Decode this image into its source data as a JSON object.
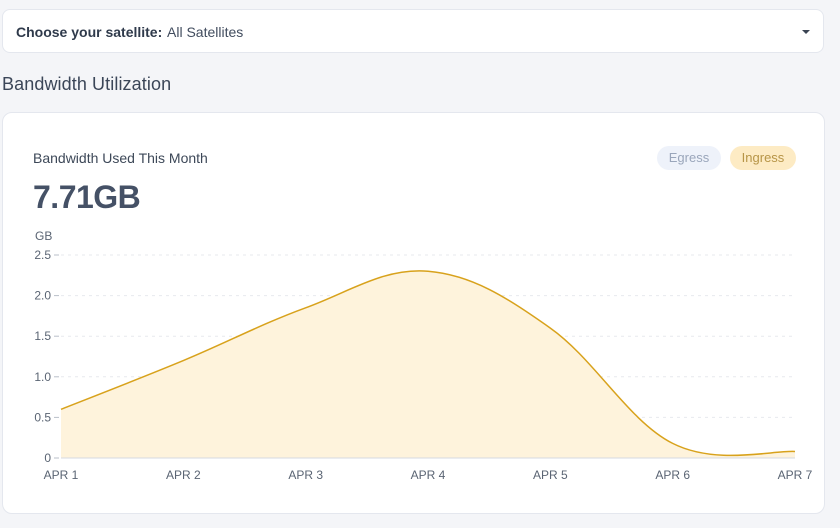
{
  "selector": {
    "label": "Choose your satellite:",
    "value": "All Satellites"
  },
  "section_title": "Bandwidth Utilization",
  "card": {
    "title": "Bandwidth Used This Month",
    "amount": "7.71GB",
    "toggles": {
      "egress": "Egress",
      "ingress": "Ingress",
      "active": "ingress"
    }
  },
  "colors": {
    "line": "#d8a21c",
    "fill": "#fef3dc",
    "grid": "#e7e9ee"
  },
  "chart_data": {
    "type": "area",
    "ylabel": "GB",
    "xlabel": "",
    "ylim": [
      0,
      2.5
    ],
    "yticks": [
      0,
      0.5,
      1.0,
      1.5,
      2.0,
      2.5
    ],
    "ytick_labels": [
      "0",
      "0.5",
      "1.0",
      "1.5",
      "2.0",
      "2.5"
    ],
    "grid": true,
    "categories": [
      "APR 1",
      "APR 2",
      "APR 3",
      "APR 4",
      "APR 5",
      "APR 6",
      "APR 7"
    ],
    "series": [
      {
        "values": [
          0.6,
          1.2,
          1.85,
          2.3,
          1.6,
          0.18,
          0.08
        ]
      }
    ]
  }
}
